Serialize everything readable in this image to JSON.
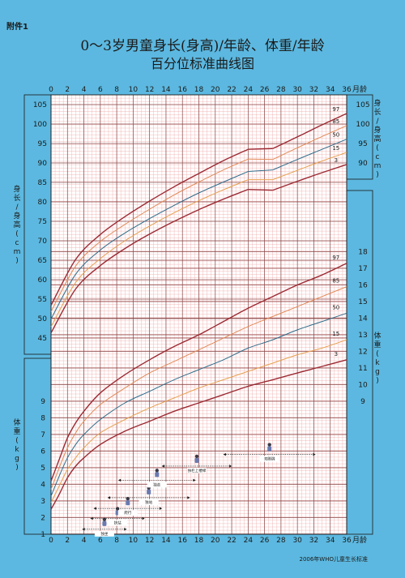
{
  "header": {
    "annex": "附件1",
    "title_line1": "0～3岁男童身长(身高)/年龄、体重/年龄",
    "title_line2": "百分位标准曲线图",
    "source": "2006年WHO儿童生长标准"
  },
  "chart_data": {
    "type": "line",
    "x_unit": "月龄",
    "x_ticks": [
      0,
      2,
      4,
      6,
      8,
      10,
      12,
      14,
      16,
      18,
      20,
      22,
      24,
      26,
      28,
      30,
      32,
      34,
      36
    ],
    "xlim": [
      0,
      36
    ],
    "length_label_left": "身长/身高(cm)",
    "length_label_right": "身长/身高(cm)",
    "weight_label": "体重(kg)",
    "length_ticks_left": [
      45,
      50,
      55,
      60,
      65,
      70,
      75,
      80,
      85,
      90,
      95,
      100,
      105
    ],
    "length_ticks_right": [
      90,
      95,
      100,
      105
    ],
    "weight_ticks_left": [
      1,
      2,
      3,
      4,
      5,
      6,
      7,
      8,
      9
    ],
    "weight_ticks_right": [
      9,
      10,
      11,
      12,
      13,
      14,
      15,
      16,
      17,
      18
    ],
    "percentiles": [
      "3",
      "15",
      "50",
      "85",
      "97"
    ],
    "colors": {
      "3": "#9b2a33",
      "15": "#e5a050",
      "50": "#2e6b8a",
      "85": "#e08a58",
      "97": "#9b2a33",
      "background": "#5cb8e0",
      "plot": "#ffffff",
      "grid_major": "#8a4646",
      "grid_minor": "#f0a8a8"
    },
    "length_x": [
      0,
      3,
      6,
      9,
      12,
      15,
      18,
      21,
      24,
      27,
      30,
      33,
      36
    ],
    "length": [
      {
        "name": "3",
        "values": [
          46.3,
          57.6,
          63.6,
          68.0,
          71.7,
          75.0,
          78.0,
          80.7,
          83.2,
          83.0,
          85.3,
          87.5,
          89.6
        ]
      },
      {
        "name": "15",
        "values": [
          47.9,
          59.3,
          65.4,
          70.0,
          73.8,
          77.2,
          80.3,
          83.1,
          85.7,
          85.7,
          88.1,
          90.5,
          92.7
        ]
      },
      {
        "name": "50",
        "values": [
          49.9,
          61.4,
          67.6,
          72.0,
          75.7,
          79.1,
          82.3,
          85.1,
          87.8,
          88.2,
          90.9,
          93.5,
          96.1
        ]
      },
      {
        "name": "85",
        "values": [
          51.8,
          63.5,
          69.8,
          74.2,
          78.1,
          81.8,
          85.1,
          88.2,
          91.0,
          90.9,
          93.9,
          96.8,
          99.6
        ]
      },
      {
        "name": "97",
        "values": [
          53.4,
          65.2,
          71.6,
          76.2,
          80.2,
          83.9,
          87.3,
          90.6,
          93.5,
          93.7,
          96.7,
          99.8,
          102.7
        ]
      }
    ],
    "weight_x": [
      0,
      1,
      2,
      3,
      4,
      6,
      9,
      12,
      15,
      18,
      21,
      24,
      27,
      30,
      33,
      36
    ],
    "weight": [
      {
        "name": "3",
        "values": [
          2.5,
          3.4,
          4.4,
          5.1,
          5.6,
          6.4,
          7.2,
          7.8,
          8.4,
          8.9,
          9.4,
          9.9,
          10.3,
          10.7,
          11.1,
          11.5
        ]
      },
      {
        "name": "15",
        "values": [
          2.9,
          3.9,
          4.9,
          5.6,
          6.2,
          7.1,
          7.9,
          8.6,
          9.2,
          9.8,
          10.3,
          10.8,
          11.3,
          11.8,
          12.2,
          12.7
        ]
      },
      {
        "name": "50",
        "values": [
          3.3,
          4.5,
          5.6,
          6.4,
          7.0,
          7.9,
          8.9,
          9.6,
          10.3,
          10.9,
          11.5,
          12.2,
          12.7,
          13.3,
          13.8,
          14.3
        ]
      },
      {
        "name": "85",
        "values": [
          3.7,
          5.0,
          6.2,
          7.1,
          7.8,
          8.8,
          9.8,
          10.7,
          11.4,
          12.1,
          12.8,
          13.5,
          14.1,
          14.7,
          15.3,
          15.9
        ]
      },
      {
        "name": "97",
        "values": [
          4.2,
          5.5,
          6.8,
          7.7,
          8.4,
          9.5,
          10.6,
          11.5,
          12.3,
          13.0,
          13.8,
          14.6,
          15.3,
          16.0,
          16.6,
          17.3
        ]
      }
    ],
    "milestones": [
      {
        "label": "独坐",
        "start": 3.8,
        "end": 9.2,
        "y": 1.3
      },
      {
        "label": "扶站",
        "start": 4.8,
        "end": 11.4,
        "y": 1.95
      },
      {
        "label": "爬行",
        "start": 5.2,
        "end": 13.5,
        "y": 2.55
      },
      {
        "label": "独站",
        "start": 6.9,
        "end": 16.9,
        "y": 3.2
      },
      {
        "label": "独走",
        "start": 8.2,
        "end": 17.6,
        "y": 4.25
      },
      {
        "label": "扶栏上楼梯",
        "start": 13.5,
        "end": 22.0,
        "y": 5.1
      },
      {
        "label": "双脚跳",
        "start": 21.0,
        "end": 32.2,
        "y": 5.8
      }
    ]
  }
}
